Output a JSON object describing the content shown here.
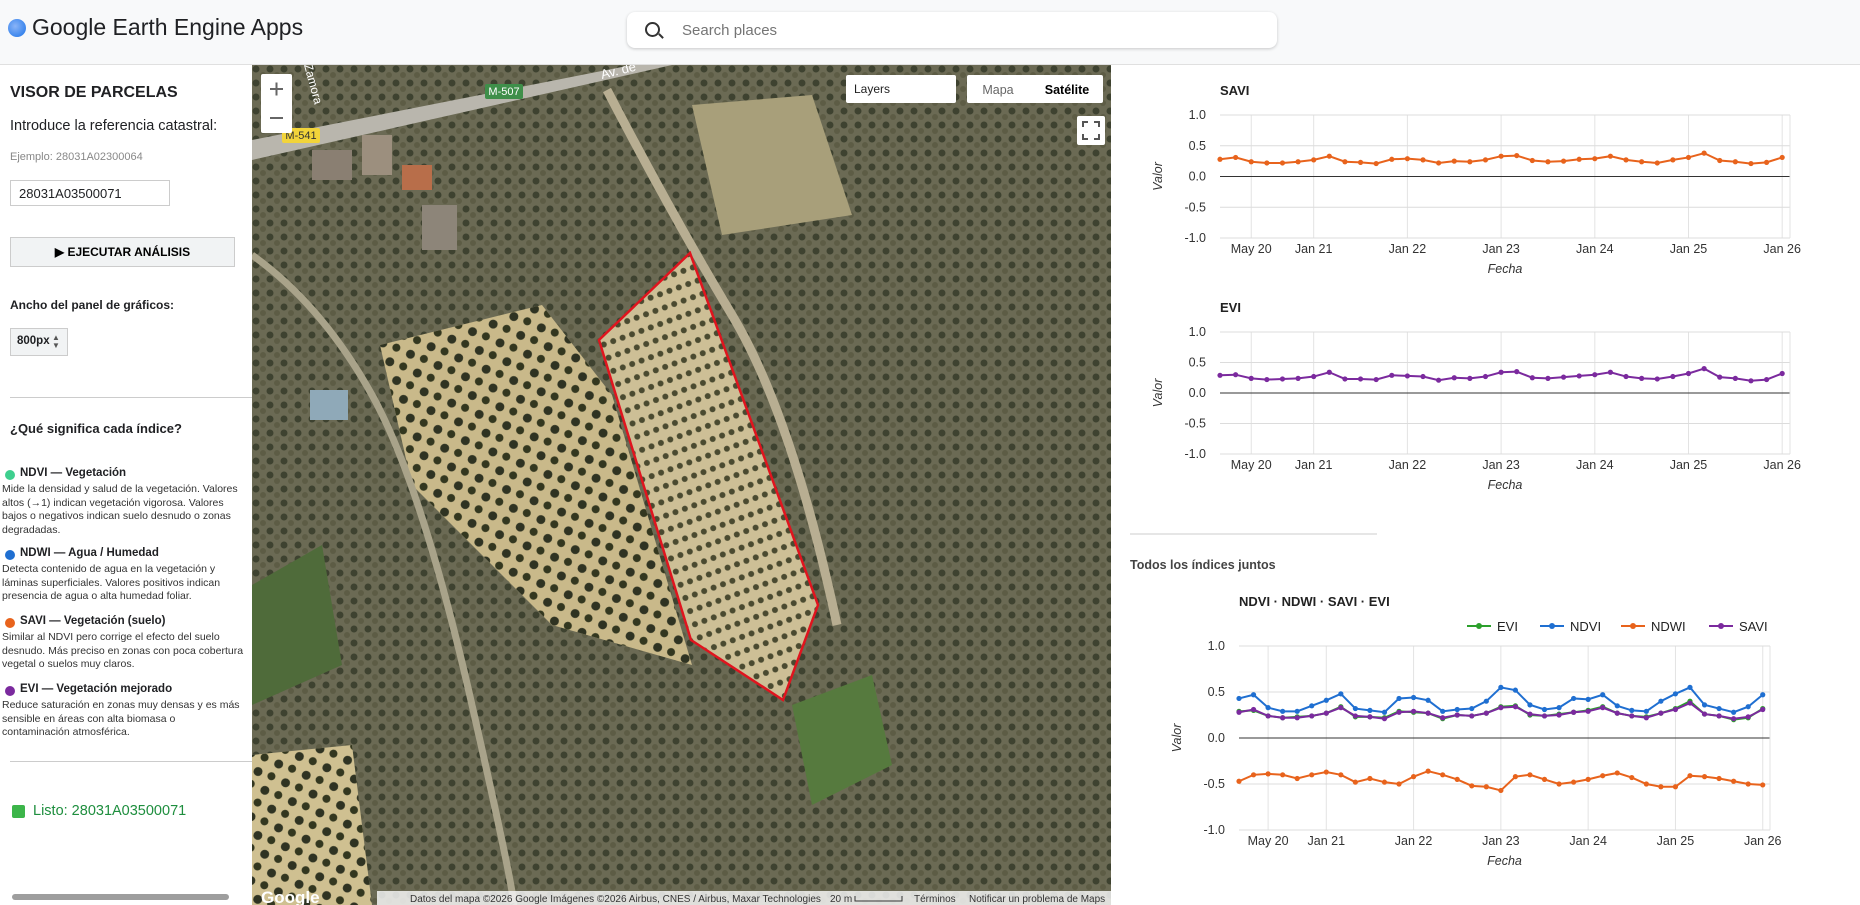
{
  "header": {
    "title": "Google Earth Engine Apps",
    "search_placeholder": "Search places"
  },
  "sidebar": {
    "title": "VISOR DE PARCELAS",
    "prompt": "Introduce la referencia catastral:",
    "example": "Ejemplo: 28031A02300064",
    "input_value": "28031A03500071",
    "button": "▶ EJECUTAR ANÁLISIS",
    "width_label": "Ancho del panel de gráficos:",
    "width_value": "800px",
    "help_title": "¿Qué significa cada índice?",
    "indices": [
      {
        "name": "NDVI — Vegetación",
        "description": "Mide la densidad y salud de la vegetación. Valores altos (→1) indican vegetación vigorosa. Valores bajos o negativos indican suelo desnudo o zonas degradadas."
      },
      {
        "name": "NDWI — Agua / Humedad",
        "description": "Detecta contenido de agua en la vegetación y láminas superficiales. Valores positivos indican presencia de agua o alta humedad foliar."
      },
      {
        "name": "SAVI — Vegetación (suelo)",
        "description": "Similar al NDVI pero corrige el efecto del suelo desnudo. Más preciso en zonas con poca cobertura vegetal o suelos muy claros."
      },
      {
        "name": "EVI — Vegetación mejorado",
        "description": "Reduce saturación en zonas muy densas y es más sensible en áreas con alta biomasa o contaminación atmosférica."
      }
    ],
    "status": "Listo: 28031A03500071"
  },
  "map": {
    "road_labels": [
      "M-507",
      "M-541",
      "Av. de",
      "Zamora"
    ],
    "layers": "Layers",
    "map_type": [
      "Mapa",
      "Satélite"
    ],
    "logo": "Google",
    "attribution": "Datos del mapa ©2026 Google Imágenes ©2026 Airbus, CNES / Airbus, Maxar Technologies",
    "scale": "20 m",
    "terms": "Términos",
    "report": "Notificar un problema de Maps"
  },
  "section_label": "Todos los índices juntos",
  "chart_data": [
    {
      "type": "line",
      "title": "SAVI",
      "x_label": "Fecha",
      "y_label": "Valor",
      "x": [
        "2020-01",
        "2020-03",
        "2020-05",
        "2020-07",
        "2020-09",
        "2020-11",
        "2021-01",
        "2021-03",
        "2021-05",
        "2021-07",
        "2021-09",
        "2021-11",
        "2022-01",
        "2022-03",
        "2022-05",
        "2022-07",
        "2022-09",
        "2022-11",
        "2023-01",
        "2023-03",
        "2023-05",
        "2023-07",
        "2023-09",
        "2023-11",
        "2024-01",
        "2024-03",
        "2024-05",
        "2024-07",
        "2024-09",
        "2024-11",
        "2025-01",
        "2025-03",
        "2025-05",
        "2025-07",
        "2025-09",
        "2025-11",
        "2026-01"
      ],
      "xlim": [
        "2020-01",
        "2026-02"
      ],
      "xticks": [
        {
          "value": "2020-05",
          "label": "May 20"
        },
        {
          "value": "2021-01",
          "label": "Jan 21"
        },
        {
          "value": "2022-01",
          "label": "Jan 22"
        },
        {
          "value": "2023-01",
          "label": "Jan 23"
        },
        {
          "value": "2024-01",
          "label": "Jan 24"
        },
        {
          "value": "2025-01",
          "label": "Jan 25"
        },
        {
          "value": "2026-01",
          "label": "Jan 26"
        }
      ],
      "ylim": [
        -1,
        1
      ],
      "yticks": [
        {
          "value": -1,
          "label": "-1.0"
        },
        {
          "value": -0.5,
          "label": "-0.5"
        },
        {
          "value": 0,
          "label": "0.0"
        },
        {
          "value": 0.5,
          "label": "0.5"
        },
        {
          "value": 1,
          "label": "1.0"
        }
      ],
      "grid": true,
      "series": [
        {
          "color": "#e8631c",
          "values": [
            0.28,
            0.31,
            0.24,
            0.22,
            0.22,
            0.24,
            0.27,
            0.33,
            0.24,
            0.23,
            0.21,
            0.28,
            0.29,
            0.27,
            0.22,
            0.25,
            0.24,
            0.27,
            0.33,
            0.34,
            0.26,
            0.24,
            0.25,
            0.28,
            0.29,
            0.33,
            0.27,
            0.24,
            0.22,
            0.27,
            0.31,
            0.38,
            0.26,
            0.24,
            0.21,
            0.23,
            0.31
          ]
        }
      ]
    },
    {
      "type": "line",
      "title": "EVI",
      "x_label": "Fecha",
      "y_label": "Valor",
      "x": [
        "2020-01",
        "2020-03",
        "2020-05",
        "2020-07",
        "2020-09",
        "2020-11",
        "2021-01",
        "2021-03",
        "2021-05",
        "2021-07",
        "2021-09",
        "2021-11",
        "2022-01",
        "2022-03",
        "2022-05",
        "2022-07",
        "2022-09",
        "2022-11",
        "2023-01",
        "2023-03",
        "2023-05",
        "2023-07",
        "2023-09",
        "2023-11",
        "2024-01",
        "2024-03",
        "2024-05",
        "2024-07",
        "2024-09",
        "2024-11",
        "2025-01",
        "2025-03",
        "2025-05",
        "2025-07",
        "2025-09",
        "2025-11",
        "2026-01"
      ],
      "xlim": [
        "2020-01",
        "2026-02"
      ],
      "xticks": [
        {
          "value": "2020-05",
          "label": "May 20"
        },
        {
          "value": "2021-01",
          "label": "Jan 21"
        },
        {
          "value": "2022-01",
          "label": "Jan 22"
        },
        {
          "value": "2023-01",
          "label": "Jan 23"
        },
        {
          "value": "2024-01",
          "label": "Jan 24"
        },
        {
          "value": "2025-01",
          "label": "Jan 25"
        },
        {
          "value": "2026-01",
          "label": "Jan 26"
        }
      ],
      "ylim": [
        -1,
        1
      ],
      "yticks": [
        {
          "value": -1,
          "label": "-1.0"
        },
        {
          "value": -0.5,
          "label": "-0.5"
        },
        {
          "value": 0,
          "label": "0.0"
        },
        {
          "value": 0.5,
          "label": "0.5"
        },
        {
          "value": 1,
          "label": "1.0"
        }
      ],
      "grid": true,
      "series": [
        {
          "color": "#7b2a9e",
          "values": [
            0.29,
            0.3,
            0.24,
            0.22,
            0.23,
            0.24,
            0.27,
            0.34,
            0.23,
            0.23,
            0.22,
            0.29,
            0.28,
            0.27,
            0.21,
            0.25,
            0.24,
            0.27,
            0.34,
            0.35,
            0.25,
            0.24,
            0.26,
            0.28,
            0.3,
            0.34,
            0.27,
            0.24,
            0.23,
            0.27,
            0.32,
            0.4,
            0.26,
            0.24,
            0.2,
            0.22,
            0.32
          ]
        }
      ]
    },
    {
      "type": "line",
      "title": "NDVI · NDWI · SAVI · EVI",
      "x_label": "Fecha",
      "y_label": "Valor",
      "x": [
        "2020-01",
        "2020-03",
        "2020-05",
        "2020-07",
        "2020-09",
        "2020-11",
        "2021-01",
        "2021-03",
        "2021-05",
        "2021-07",
        "2021-09",
        "2021-11",
        "2022-01",
        "2022-03",
        "2022-05",
        "2022-07",
        "2022-09",
        "2022-11",
        "2023-01",
        "2023-03",
        "2023-05",
        "2023-07",
        "2023-09",
        "2023-11",
        "2024-01",
        "2024-03",
        "2024-05",
        "2024-07",
        "2024-09",
        "2024-11",
        "2025-01",
        "2025-03",
        "2025-05",
        "2025-07",
        "2025-09",
        "2025-11",
        "2026-01"
      ],
      "xlim": [
        "2020-01",
        "2026-02"
      ],
      "xticks": [
        {
          "value": "2020-05",
          "label": "May 20"
        },
        {
          "value": "2021-01",
          "label": "Jan 21"
        },
        {
          "value": "2022-01",
          "label": "Jan 22"
        },
        {
          "value": "2023-01",
          "label": "Jan 23"
        },
        {
          "value": "2024-01",
          "label": "Jan 24"
        },
        {
          "value": "2025-01",
          "label": "Jan 25"
        },
        {
          "value": "2026-01",
          "label": "Jan 26"
        }
      ],
      "ylim": [
        -1,
        1
      ],
      "yticks": [
        {
          "value": -1,
          "label": "-1.0"
        },
        {
          "value": -0.5,
          "label": "-0.5"
        },
        {
          "value": 0,
          "label": "0.0"
        },
        {
          "value": 0.5,
          "label": "0.5"
        },
        {
          "value": 1,
          "label": "1.0"
        }
      ],
      "grid": true,
      "legend": "top-right",
      "series": [
        {
          "name": "EVI",
          "color": "#2ca02c",
          "values": [
            0.29,
            0.3,
            0.24,
            0.22,
            0.23,
            0.24,
            0.27,
            0.34,
            0.23,
            0.23,
            0.22,
            0.29,
            0.28,
            0.27,
            0.21,
            0.25,
            0.24,
            0.27,
            0.34,
            0.35,
            0.25,
            0.24,
            0.26,
            0.28,
            0.3,
            0.34,
            0.27,
            0.24,
            0.23,
            0.27,
            0.32,
            0.4,
            0.26,
            0.24,
            0.2,
            0.22,
            0.32
          ]
        },
        {
          "name": "NDVI",
          "color": "#1f6fd1",
          "values": [
            0.43,
            0.47,
            0.33,
            0.29,
            0.29,
            0.35,
            0.41,
            0.48,
            0.32,
            0.3,
            0.28,
            0.43,
            0.44,
            0.41,
            0.29,
            0.31,
            0.32,
            0.4,
            0.55,
            0.52,
            0.36,
            0.31,
            0.33,
            0.43,
            0.42,
            0.47,
            0.35,
            0.3,
            0.29,
            0.4,
            0.48,
            0.55,
            0.36,
            0.32,
            0.28,
            0.34,
            0.47
          ]
        },
        {
          "name": "NDWI",
          "color": "#e8631c",
          "values": [
            -0.47,
            -0.4,
            -0.39,
            -0.4,
            -0.44,
            -0.4,
            -0.37,
            -0.4,
            -0.48,
            -0.44,
            -0.48,
            -0.5,
            -0.42,
            -0.36,
            -0.4,
            -0.45,
            -0.52,
            -0.53,
            -0.57,
            -0.42,
            -0.4,
            -0.45,
            -0.5,
            -0.48,
            -0.45,
            -0.41,
            -0.38,
            -0.43,
            -0.5,
            -0.53,
            -0.53,
            -0.41,
            -0.42,
            -0.44,
            -0.47,
            -0.5,
            -0.51
          ]
        },
        {
          "name": "SAVI",
          "color": "#7b2a9e",
          "values": [
            0.28,
            0.31,
            0.24,
            0.22,
            0.22,
            0.24,
            0.27,
            0.33,
            0.24,
            0.23,
            0.21,
            0.28,
            0.29,
            0.27,
            0.22,
            0.25,
            0.24,
            0.27,
            0.33,
            0.34,
            0.26,
            0.24,
            0.25,
            0.28,
            0.29,
            0.33,
            0.27,
            0.24,
            0.22,
            0.27,
            0.31,
            0.38,
            0.26,
            0.24,
            0.21,
            0.23,
            0.31
          ]
        }
      ]
    }
  ]
}
